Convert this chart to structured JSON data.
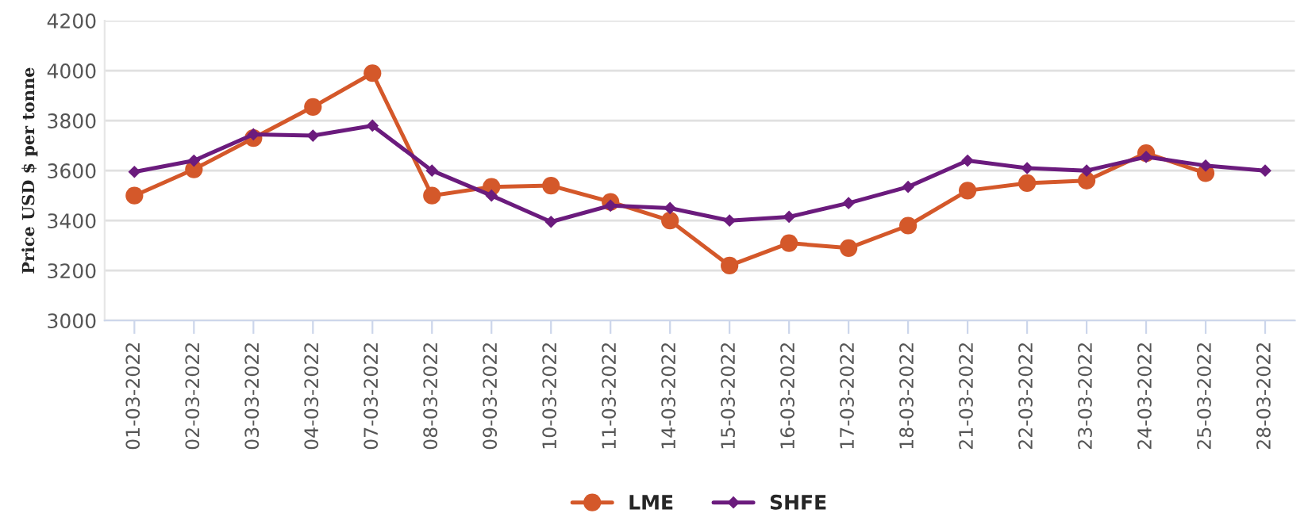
{
  "chart_data": {
    "type": "line",
    "ylabel": "Price USD $ per tonne",
    "categories": [
      "01-03-2022",
      "02-03-2022",
      "03-03-2022",
      "04-03-2022",
      "07-03-2022",
      "08-03-2022",
      "09-03-2022",
      "10-03-2022",
      "11-03-2022",
      "14-03-2022",
      "15-03-2022",
      "16-03-2022",
      "17-03-2022",
      "18-03-2022",
      "21-03-2022",
      "22-03-2022",
      "23-03-2022",
      "24-03-2022",
      "25-03-2022",
      "28-03-2022"
    ],
    "series": [
      {
        "name": "LME",
        "color": "#d4582a",
        "marker": "circle",
        "values": [
          3500,
          3605,
          3730,
          3855,
          3990,
          3500,
          3535,
          3540,
          3475,
          3400,
          3220,
          3310,
          3290,
          3380,
          3520,
          3550,
          3560,
          3670,
          3590,
          null
        ]
      },
      {
        "name": "SHFE",
        "color": "#6b1b7d",
        "marker": "diamond",
        "values": [
          3595,
          3640,
          3745,
          3740,
          3780,
          3600,
          3500,
          3395,
          3460,
          3450,
          3400,
          3415,
          3470,
          3535,
          3640,
          3610,
          3600,
          3655,
          3620,
          3600
        ]
      }
    ],
    "ylim": [
      3000,
      4200
    ],
    "yticks": [
      3000,
      3200,
      3400,
      3600,
      3800,
      4000,
      4200
    ],
    "grid": "y",
    "legend": "bottom",
    "line_style": "solid"
  }
}
